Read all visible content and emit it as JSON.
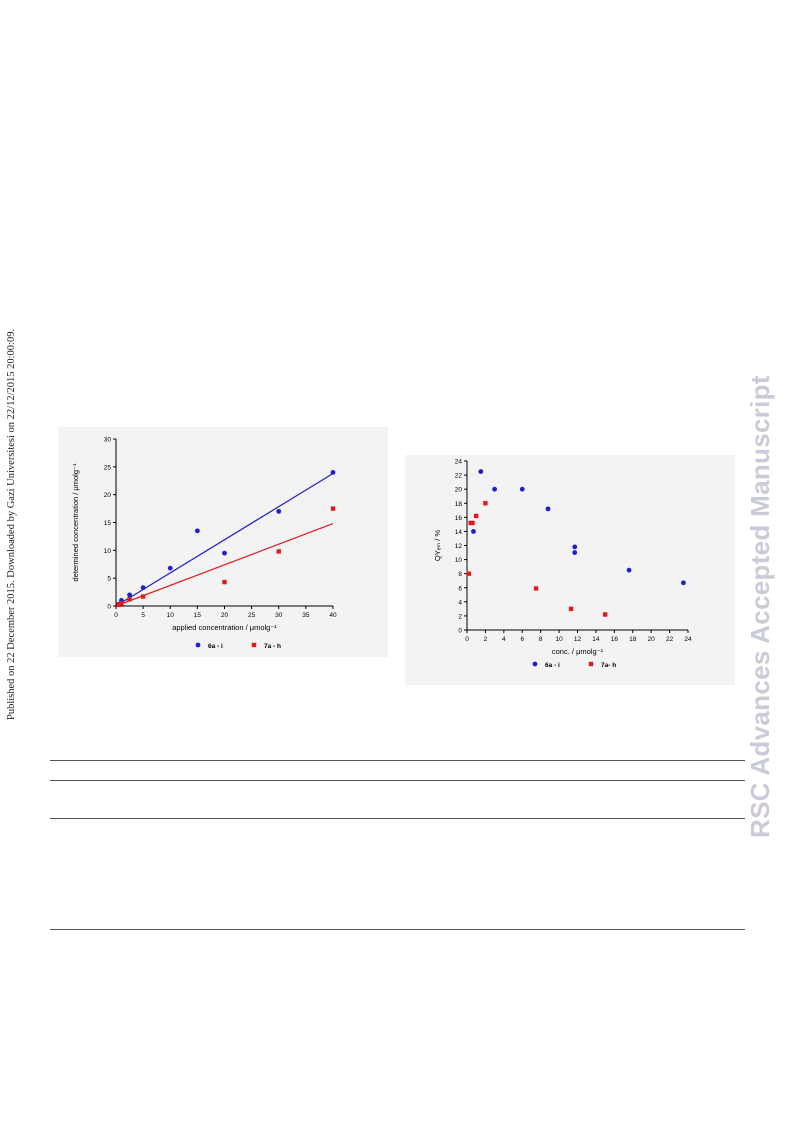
{
  "sidebar_text": "Published on 22 December 2015. Downloaded by Gazi Universitesi on 22/12/2015 20:00:09.",
  "watermark": "RSC Advances Accepted Manuscript",
  "colors": {
    "blue": "#1f1fcf",
    "red": "#e31a1c",
    "watermark": "#c9cbd8"
  },
  "chart_data": [
    {
      "type": "scatter",
      "title": "",
      "xlabel": "applied concentration / μmolg⁻¹",
      "ylabel": "determined concentration / μmolg⁻¹",
      "xlim": [
        0,
        40
      ],
      "ylim": [
        0,
        30
      ],
      "xticks": [
        "0",
        "5",
        "10",
        "15",
        "20",
        "25",
        "30",
        "35",
        "40"
      ],
      "yticks": [
        "0",
        "5",
        "10",
        "15",
        "20",
        "25",
        "30"
      ],
      "legend_position": "bottom",
      "series": [
        {
          "name": "6a - i",
          "color": "#1f1fcf",
          "marker": "circle",
          "points": [
            [
              0.5,
              0.3
            ],
            [
              1,
              1.0
            ],
            [
              2.5,
              2.0
            ],
            [
              5,
              3.3
            ],
            [
              10,
              6.8
            ],
            [
              15,
              13.5
            ],
            [
              20,
              9.5
            ],
            [
              30,
              17.0
            ],
            [
              40,
              24.0
            ]
          ],
          "fit": [
            [
              0,
              0.0
            ],
            [
              40,
              23.8
            ]
          ]
        },
        {
          "name": "7a - h",
          "color": "#e31a1c",
          "marker": "square",
          "points": [
            [
              0.5,
              0.2
            ],
            [
              1,
              0.5
            ],
            [
              2.5,
              1.2
            ],
            [
              5,
              1.7
            ],
            [
              20,
              4.3
            ],
            [
              30,
              9.8
            ],
            [
              40,
              17.5
            ]
          ],
          "fit": [
            [
              0,
              0.0
            ],
            [
              40,
              14.8
            ]
          ]
        }
      ]
    },
    {
      "type": "scatter",
      "title": "",
      "xlabel": "conc. / μmolg⁻¹",
      "ylabel": "QYₑₘ / %",
      "xlim": [
        0,
        24
      ],
      "ylim": [
        0,
        24
      ],
      "xticks": [
        "0",
        "2",
        "4",
        "6",
        "8",
        "10",
        "12",
        "14",
        "16",
        "18",
        "20",
        "22",
        "24"
      ],
      "yticks": [
        "0",
        "2",
        "4",
        "6",
        "8",
        "10",
        "12",
        "14",
        "16",
        "18",
        "20",
        "22",
        "24"
      ],
      "legend_position": "bottom",
      "series": [
        {
          "name": "6a - i",
          "color": "#1f1fcf",
          "marker": "circle",
          "points": [
            [
              0.7,
              14.0
            ],
            [
              1.5,
              22.5
            ],
            [
              3.0,
              20.0
            ],
            [
              6.0,
              20.0
            ],
            [
              8.8,
              17.2
            ],
            [
              11.7,
              11.8
            ],
            [
              11.7,
              11.0
            ],
            [
              17.6,
              8.5
            ],
            [
              23.5,
              6.7
            ]
          ]
        },
        {
          "name": "7a- h",
          "color": "#e31a1c",
          "marker": "square",
          "points": [
            [
              0.2,
              8.0
            ],
            [
              0.4,
              15.2
            ],
            [
              0.6,
              15.2
            ],
            [
              1.0,
              16.2
            ],
            [
              2.0,
              18.0
            ],
            [
              7.5,
              5.9
            ],
            [
              11.3,
              3.0
            ],
            [
              15.0,
              2.2
            ]
          ]
        }
      ]
    }
  ]
}
